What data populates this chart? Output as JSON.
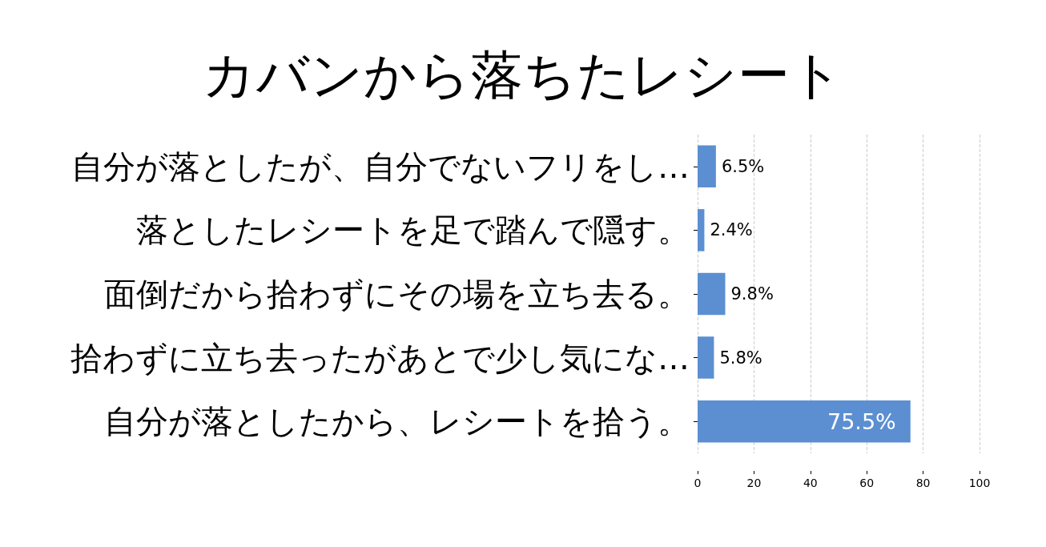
{
  "chart_data": {
    "type": "bar",
    "orientation": "horizontal",
    "title": "カバンから落ちたレシート",
    "categories": [
      "自分が落としたが、自分でないフリをし…",
      "落としたレシートを足で踏んで隠す。",
      "面倒だから拾わずにその場を立ち去る。",
      "拾わずに立ち去ったがあとで少し気にな…",
      "自分が落としたから、レシートを拾う。"
    ],
    "values": [
      6.5,
      2.4,
      9.8,
      5.8,
      75.5
    ],
    "value_labels": [
      "6.5%",
      "2.4%",
      "9.8%",
      "5.8%",
      "75.5%"
    ],
    "color": "#5b8fd1",
    "xlim": [
      0,
      100
    ],
    "xticks": [
      0,
      20,
      40,
      60,
      80,
      100
    ],
    "grid": "x"
  }
}
